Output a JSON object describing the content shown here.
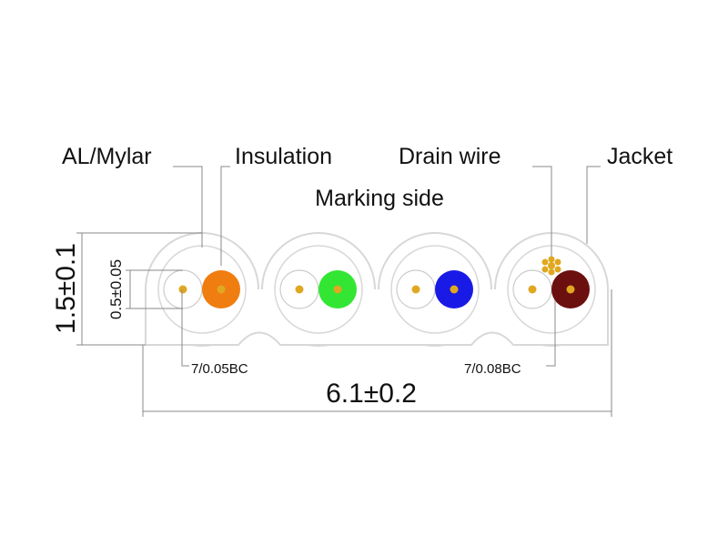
{
  "labels": {
    "al_mylar": "AL/Mylar",
    "insulation": "Insulation",
    "drain_wire": "Drain wire",
    "jacket": "Jacket",
    "marking_side": "Marking side"
  },
  "dimensions": {
    "height": "1.5±0.1",
    "conductor_pitch": "0.5±0.05",
    "width": "6.1±0.2"
  },
  "conductors": {
    "signal": "7/0.05BC",
    "drain": "7/0.08BC"
  }
}
